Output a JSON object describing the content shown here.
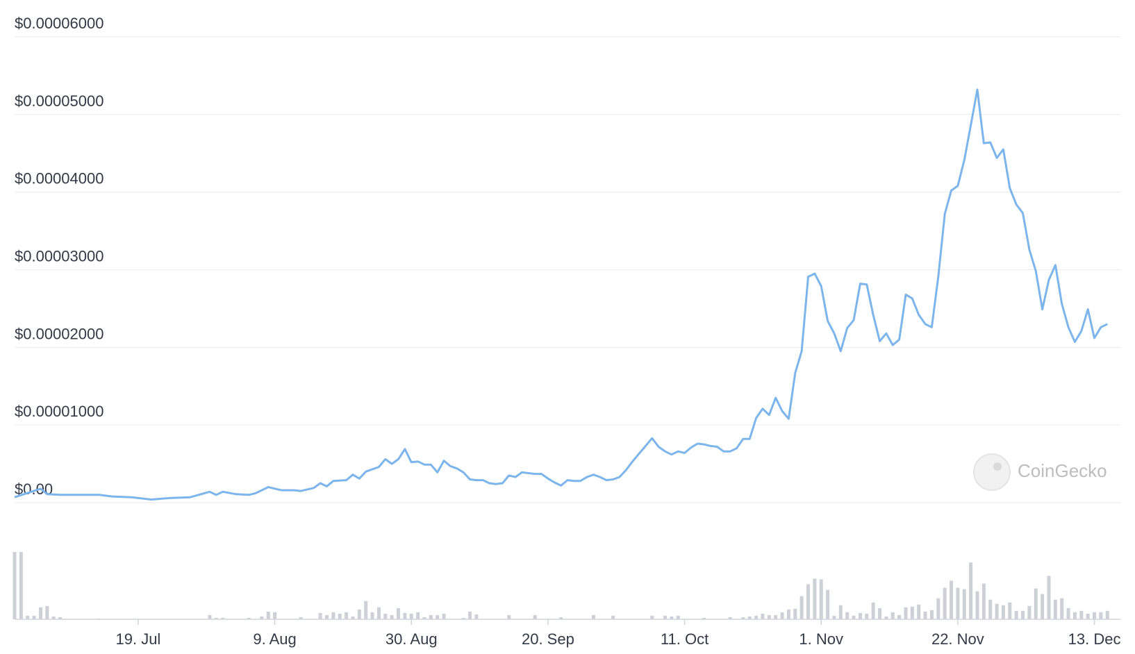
{
  "chart_data": {
    "type": "line",
    "x": [
      0,
      4,
      5,
      7,
      10,
      13,
      15,
      18,
      21,
      24,
      27,
      30,
      31,
      32,
      34,
      36,
      37,
      39,
      41,
      43,
      44,
      46,
      47,
      48,
      49,
      51,
      52,
      53,
      54,
      56,
      57,
      58,
      59,
      60,
      61,
      62,
      63,
      64,
      65,
      66,
      67,
      68,
      69,
      70,
      71,
      72,
      73,
      74,
      75,
      76,
      77,
      78,
      79,
      80,
      81,
      82,
      83,
      84,
      85,
      86,
      87,
      88,
      89,
      90,
      91,
      92,
      93,
      94,
      95,
      96,
      97,
      98,
      99,
      100,
      101,
      102,
      103,
      104,
      105,
      106,
      107,
      108,
      109,
      110,
      111,
      112,
      113,
      114,
      115,
      116,
      117,
      118,
      119,
      120,
      121,
      122,
      123,
      124,
      125,
      126,
      127,
      128,
      129,
      130,
      131,
      132,
      133,
      134,
      135,
      136,
      137,
      138,
      139,
      140,
      141,
      142,
      143,
      144,
      145,
      146,
      147,
      148,
      149,
      150,
      151,
      152,
      153,
      154,
      155,
      156,
      157,
      158,
      159,
      160,
      161,
      162,
      163,
      164,
      165,
      166,
      167,
      168
    ],
    "series": [
      {
        "color": "#7cb5ec",
        "values": [
          7e-07,
          1.8e-06,
          1.1e-06,
          1e-06,
          1e-06,
          1e-06,
          8e-07,
          7e-07,
          4e-07,
          6e-07,
          7e-07,
          1.4e-06,
          1e-06,
          1.4e-06,
          1.1e-06,
          1e-06,
          1.2e-06,
          2e-06,
          1.6e-06,
          1.6e-06,
          1.5e-06,
          1.9e-06,
          2.5e-06,
          2.1e-06,
          2.8e-06,
          2.9e-06,
          3.6e-06,
          3.1e-06,
          4e-06,
          4.6e-06,
          5.6e-06,
          5e-06,
          5.6e-06,
          6.9e-06,
          5.2e-06,
          5.3e-06,
          4.9e-06,
          4.9e-06,
          3.9e-06,
          5.4e-06,
          4.7e-06,
          4.4e-06,
          3.9e-06,
          3e-06,
          2.9e-06,
          2.9e-06,
          2.5e-06,
          2.4e-06,
          2.5e-06,
          3.5e-06,
          3.3e-06,
          3.9e-06,
          3.8e-06,
          3.7e-06,
          3.7e-06,
          3.1e-06,
          2.6e-06,
          2.2e-06,
          2.9e-06,
          2.8e-06,
          2.8e-06,
          3.3e-06,
          3.6e-06,
          3.3e-06,
          2.9e-06,
          3e-06,
          3.3e-06,
          4.2e-06,
          5.3e-06,
          6.3e-06,
          7.3e-06,
          8.3e-06,
          7.2e-06,
          6.6e-06,
          6.2e-06,
          6.6e-06,
          6.4e-06,
          7.1e-06,
          7.6e-06,
          7.5e-06,
          7.3e-06,
          7.2e-06,
          6.6e-06,
          6.6e-06,
          7e-06,
          8.2e-06,
          8.2e-06,
          1.09e-05,
          1.21e-05,
          1.13e-05,
          1.35e-05,
          1.18e-05,
          1.08e-05,
          1.67e-05,
          1.95e-05,
          2.91e-05,
          2.95e-05,
          2.79e-05,
          2.34e-05,
          2.18e-05,
          1.95e-05,
          2.25e-05,
          2.35e-05,
          2.82e-05,
          2.81e-05,
          2.42e-05,
          2.08e-05,
          2.18e-05,
          2.03e-05,
          2.1e-05,
          2.68e-05,
          2.63e-05,
          2.42e-05,
          2.3e-05,
          2.26e-05,
          2.91e-05,
          3.72e-05,
          4.02e-05,
          4.08e-05,
          4.41e-05,
          4.86e-05,
          5.32e-05,
          4.63e-05,
          4.64e-05,
          4.44e-05,
          4.55e-05,
          4.05e-05,
          3.84e-05,
          3.73e-05,
          3.26e-05,
          2.98e-05,
          2.49e-05,
          2.87e-05,
          3.06e-05,
          2.56e-05,
          2.26e-05,
          2.07e-05,
          2.21e-05,
          2.49e-05,
          2.12e-05,
          2.26e-05,
          2.3e-05
        ]
      }
    ],
    "xlim": [
      0,
      170
    ],
    "xticks": [
      {
        "value": 19,
        "label": "19. Jul"
      },
      {
        "value": 40,
        "label": "9. Aug"
      },
      {
        "value": 61,
        "label": "30. Aug"
      },
      {
        "value": 82,
        "label": "20. Sep"
      },
      {
        "value": 103,
        "label": "11. Oct"
      },
      {
        "value": 124,
        "label": "1. Nov"
      },
      {
        "value": 145,
        "label": "22. Nov"
      },
      {
        "value": 166,
        "label": "13. Dec"
      }
    ],
    "ylim": [
      0,
      6e-05
    ],
    "yticks": [
      {
        "value": 0,
        "label": "$0.00"
      },
      {
        "value": 1e-05,
        "label": "$0.00001000"
      },
      {
        "value": 2e-05,
        "label": "$0.00002000"
      },
      {
        "value": 3e-05,
        "label": "$0.00003000"
      },
      {
        "value": 4e-05,
        "label": "$0.00004000"
      },
      {
        "value": 5e-05,
        "label": "$0.00005000"
      },
      {
        "value": 6e-05,
        "label": "$0.00006000"
      }
    ],
    "grid": true,
    "volume": {
      "color": "#cdd0d6",
      "ylim": [
        0,
        100
      ],
      "x": [
        0,
        1,
        2,
        3,
        4,
        5,
        6,
        7,
        13,
        30,
        31,
        32,
        36,
        38,
        39,
        40,
        44,
        47,
        48,
        49,
        50,
        51,
        52,
        53,
        54,
        55,
        56,
        57,
        58,
        59,
        60,
        61,
        62,
        63,
        64,
        65,
        66,
        69,
        70,
        71,
        76,
        80,
        84,
        89,
        92,
        98,
        100,
        101,
        102,
        106,
        110,
        112,
        113,
        114,
        115,
        116,
        117,
        118,
        119,
        120,
        121,
        122,
        123,
        124,
        125,
        126,
        127,
        128,
        129,
        130,
        131,
        132,
        133,
        134,
        135,
        136,
        137,
        138,
        139,
        140,
        141,
        142,
        143,
        144,
        145,
        146,
        147,
        148,
        149,
        150,
        151,
        152,
        153,
        154,
        155,
        156,
        157,
        158,
        159,
        160,
        161,
        162,
        163,
        164,
        165,
        166,
        167,
        168
      ],
      "values": [
        96,
        96,
        5,
        5,
        17,
        19,
        4,
        3,
        1,
        6,
        2,
        2,
        2,
        4,
        11,
        10,
        3,
        9,
        6,
        10,
        8,
        10,
        4,
        14,
        26,
        10,
        17,
        8,
        6,
        16,
        9,
        8,
        10,
        3,
        6,
        6,
        8,
        2,
        11,
        7,
        6,
        6,
        3,
        6,
        5,
        5,
        5,
        4,
        5,
        2,
        3,
        3,
        4,
        5,
        8,
        6,
        6,
        10,
        14,
        15,
        33,
        50,
        58,
        57,
        42,
        5,
        20,
        10,
        5,
        9,
        8,
        24,
        16,
        4,
        10,
        6,
        17,
        18,
        21,
        11,
        13,
        30,
        45,
        55,
        45,
        43,
        81,
        40,
        51,
        28,
        22,
        20,
        24,
        12,
        12,
        19,
        44,
        36,
        62,
        28,
        30,
        16,
        10,
        12,
        8,
        10,
        10,
        12
      ]
    },
    "watermark": "CoinGecko"
  }
}
